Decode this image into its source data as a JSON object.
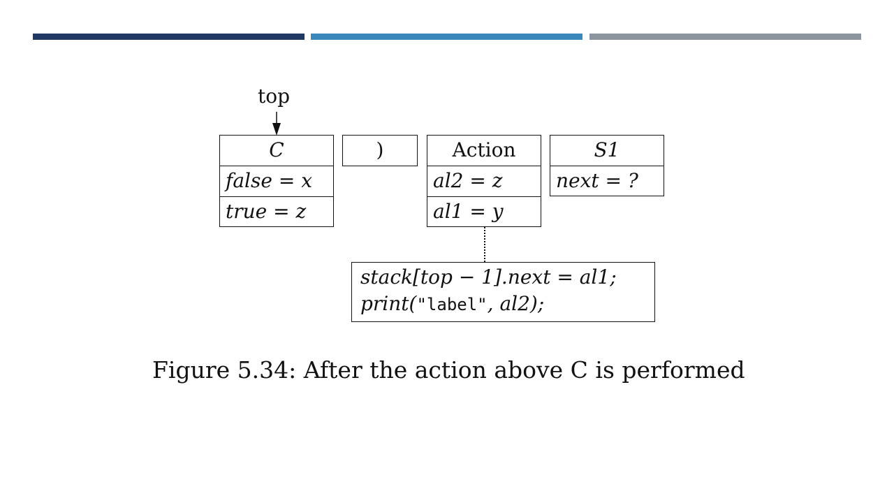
{
  "header_bars": {
    "colors": [
      "#1f3864",
      "#3b87b9",
      "#8c959d"
    ]
  },
  "diagram": {
    "pointer_label": "top",
    "records": [
      {
        "name": "C",
        "fields": [
          "false = x",
          "true = z"
        ]
      },
      {
        "name": ")",
        "fields": []
      },
      {
        "name": "Action",
        "fields": [
          "al2 = z",
          "al1 = y"
        ]
      },
      {
        "name": "S1",
        "fields": [
          "next = ?"
        ]
      }
    ],
    "action_code": {
      "line1": "stack[top − 1].next = al1;",
      "line2_prefix": "print(",
      "line2_string": "\"label\"",
      "line2_suffix": ", al2);"
    }
  },
  "caption": {
    "text": "Figure 5.34: After the action above C is performed"
  }
}
